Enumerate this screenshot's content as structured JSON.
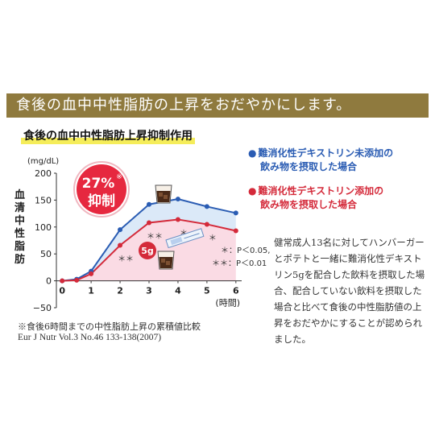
{
  "banner": "食後の血中中性脂肪の上昇をおだやかにします。",
  "subtitle": "食後の血中中性脂肪上昇抑制作用",
  "legend": {
    "blue_line1": "難消化性デキストリン未添加の",
    "blue_line2": "飲み物を摂取した場合",
    "red_line1": "難消化性デキストリン添加の",
    "red_line2": "飲み物を摂取した場合",
    "bullet": "●"
  },
  "description": "健常成人13名に対してハンバーガーとポテトと一緒に難消化性デキストリン5gを配合した飲料を摂取した場合、配合していない飲料を摂取した場合と比べて食後の中性脂肪値の上昇をおだやかにすることが認められました。",
  "footnote": "※食後6時間までの中性脂肪上昇の累積値比較",
  "citation": "Eur J Nutr Vol.3 No.46 133-138(2007)",
  "badge": {
    "percent": "27%",
    "mark": "※",
    "label": "抑制"
  },
  "stick_label": "5g",
  "sig_legend": [
    "＊：P＜0.05,",
    "＊＊：P＜0.01"
  ],
  "colors": {
    "blue": "#2a5cb3",
    "red": "#d42a3a",
    "blue_fill": "#dbe9f8",
    "red_fill": "#fadbe4",
    "banner": "#8f7a3e"
  },
  "chart_data": {
    "type": "line",
    "ylabel_unit": "(mg/dL)",
    "ylabel": "血清中性脂肪",
    "xlabel": "(時間)",
    "x": [
      0,
      0.5,
      1,
      2,
      3,
      4,
      5,
      6
    ],
    "xticks": [
      0,
      1,
      2,
      3,
      4,
      5,
      6
    ],
    "yticks": [
      -50,
      0,
      50,
      100,
      150,
      200
    ],
    "ylim": [
      -50,
      200
    ],
    "xlim": [
      -0.2,
      6.2
    ],
    "series": [
      {
        "name": "難消化性デキストリン未添加の飲み物を摂取した場合",
        "color": "blue",
        "values": [
          0,
          3,
          18,
          95,
          142,
          152,
          138,
          126
        ]
      },
      {
        "name": "難消化性デキストリン添加の飲み物を摂取した場合",
        "color": "red",
        "values": [
          0,
          1,
          13,
          66,
          108,
          114,
          105,
          93
        ]
      }
    ],
    "annotations": [
      {
        "x": 2,
        "text": "＊＊"
      },
      {
        "x": 3,
        "text": "＊＊"
      },
      {
        "x": 4,
        "text": "＊"
      },
      {
        "x": 5,
        "text": "＊"
      }
    ],
    "grid": false
  }
}
